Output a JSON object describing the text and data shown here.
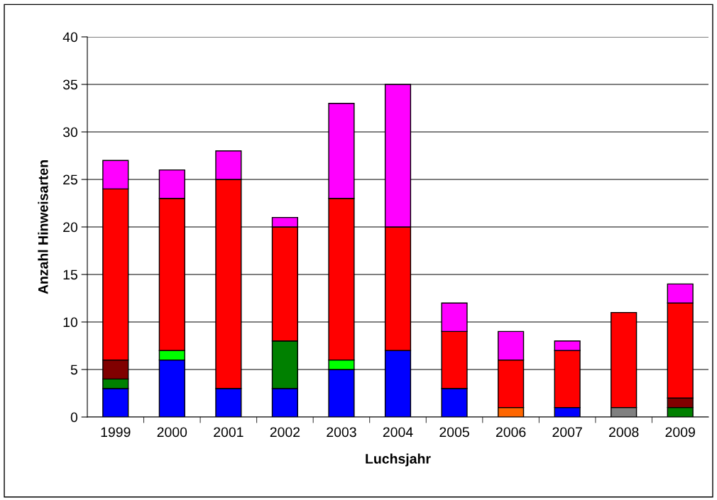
{
  "chart_data": {
    "type": "bar",
    "stacked": true,
    "xlabel": "Luchsjahr",
    "ylabel": "Anzahl Hinweisarten",
    "categories": [
      "1999",
      "2000",
      "2001",
      "2002",
      "2003",
      "2004",
      "2005",
      "2006",
      "2007",
      "2008",
      "2009"
    ],
    "series": [
      {
        "color": "#0000ff",
        "values": [
          3,
          6,
          3,
          3,
          5,
          7,
          3,
          null,
          1,
          null,
          null
        ]
      },
      {
        "color": "#008000",
        "values": [
          1,
          null,
          null,
          5,
          null,
          null,
          null,
          null,
          null,
          null,
          1
        ]
      },
      {
        "color": "#00ff00",
        "values": [
          null,
          1,
          null,
          null,
          1,
          null,
          null,
          null,
          null,
          null,
          null
        ]
      },
      {
        "color": "#800000",
        "values": [
          2,
          null,
          null,
          null,
          null,
          null,
          null,
          null,
          null,
          null,
          1
        ]
      },
      {
        "color": "#ff6600",
        "values": [
          null,
          null,
          null,
          null,
          null,
          null,
          null,
          1,
          null,
          null,
          null
        ]
      },
      {
        "color": "#808080",
        "values": [
          null,
          null,
          null,
          null,
          null,
          null,
          null,
          null,
          null,
          1,
          null
        ]
      },
      {
        "color": "#ff0000",
        "values": [
          18,
          16,
          22,
          12,
          17,
          13,
          6,
          5,
          6,
          10,
          10
        ]
      },
      {
        "color": "#ff00ff",
        "values": [
          3,
          3,
          3,
          1,
          10,
          15,
          3,
          3,
          1,
          null,
          2
        ]
      }
    ],
    "ylim": [
      0,
      40
    ],
    "yticks": [
      0,
      5,
      10,
      15,
      20,
      25,
      30,
      35,
      40
    ],
    "grid": "y"
  }
}
